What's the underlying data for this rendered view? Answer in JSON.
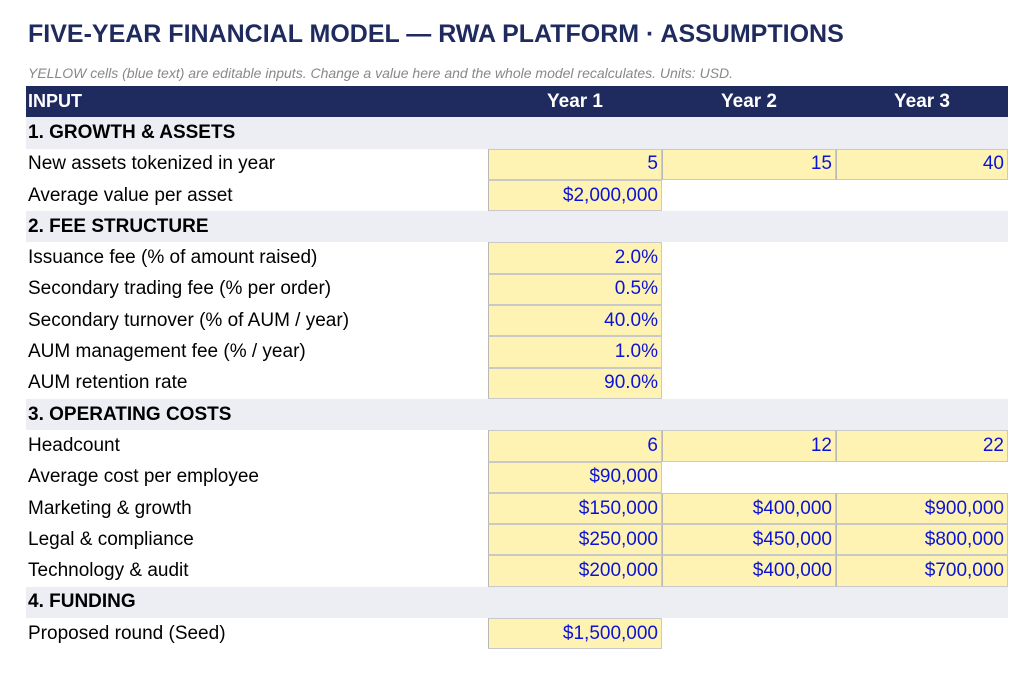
{
  "title": "FIVE-YEAR FINANCIAL MODEL — RWA PLATFORM · ASSUMPTIONS",
  "subtitle": "YELLOW cells (blue text) are editable inputs. Change a value here and the whole model recalculates. Units: USD.",
  "header": {
    "input": "INPUT",
    "year1": "Year 1",
    "year2": "Year 2",
    "year3": "Year 3"
  },
  "sections": {
    "growth": "1. GROWTH & ASSETS",
    "fees": "2. FEE STRUCTURE",
    "costs": "3. OPERATING COSTS",
    "funding": "4. FUNDING"
  },
  "rows": {
    "new_assets": {
      "label": "New assets tokenized in year",
      "y1": "5",
      "y2": "15",
      "y3": "40"
    },
    "avg_value": {
      "label": "Average value per asset",
      "y1": "$2,000,000"
    },
    "issuance_fee": {
      "label": "Issuance fee (% of amount raised)",
      "y1": "2.0%"
    },
    "trading_fee": {
      "label": "Secondary trading fee (% per order)",
      "y1": "0.5%"
    },
    "turnover": {
      "label": "Secondary turnover (% of AUM / year)",
      "y1": "40.0%"
    },
    "aum_fee": {
      "label": "AUM management fee (% / year)",
      "y1": "1.0%"
    },
    "retention": {
      "label": "AUM retention rate",
      "y1": "90.0%"
    },
    "headcount": {
      "label": "Headcount",
      "y1": "6",
      "y2": "12",
      "y3": "22"
    },
    "cost_per_emp": {
      "label": "Average cost per employee",
      "y1": "$90,000"
    },
    "marketing": {
      "label": "Marketing & growth",
      "y1": "$150,000",
      "y2": "$400,000",
      "y3": "$900,000"
    },
    "legal": {
      "label": "Legal & compliance",
      "y1": "$250,000",
      "y2": "$450,000",
      "y3": "$800,000"
    },
    "tech": {
      "label": "Technology & audit",
      "y1": "$200,000",
      "y2": "$400,000",
      "y3": "$700,000"
    },
    "seed": {
      "label": "Proposed round (Seed)",
      "y1": "$1,500,000"
    }
  },
  "colors": {
    "header_bg": "#1f2a5e",
    "input_bg": "#fff3b3",
    "input_text": "#0a14d8",
    "section_bg": "#eceef4"
  }
}
